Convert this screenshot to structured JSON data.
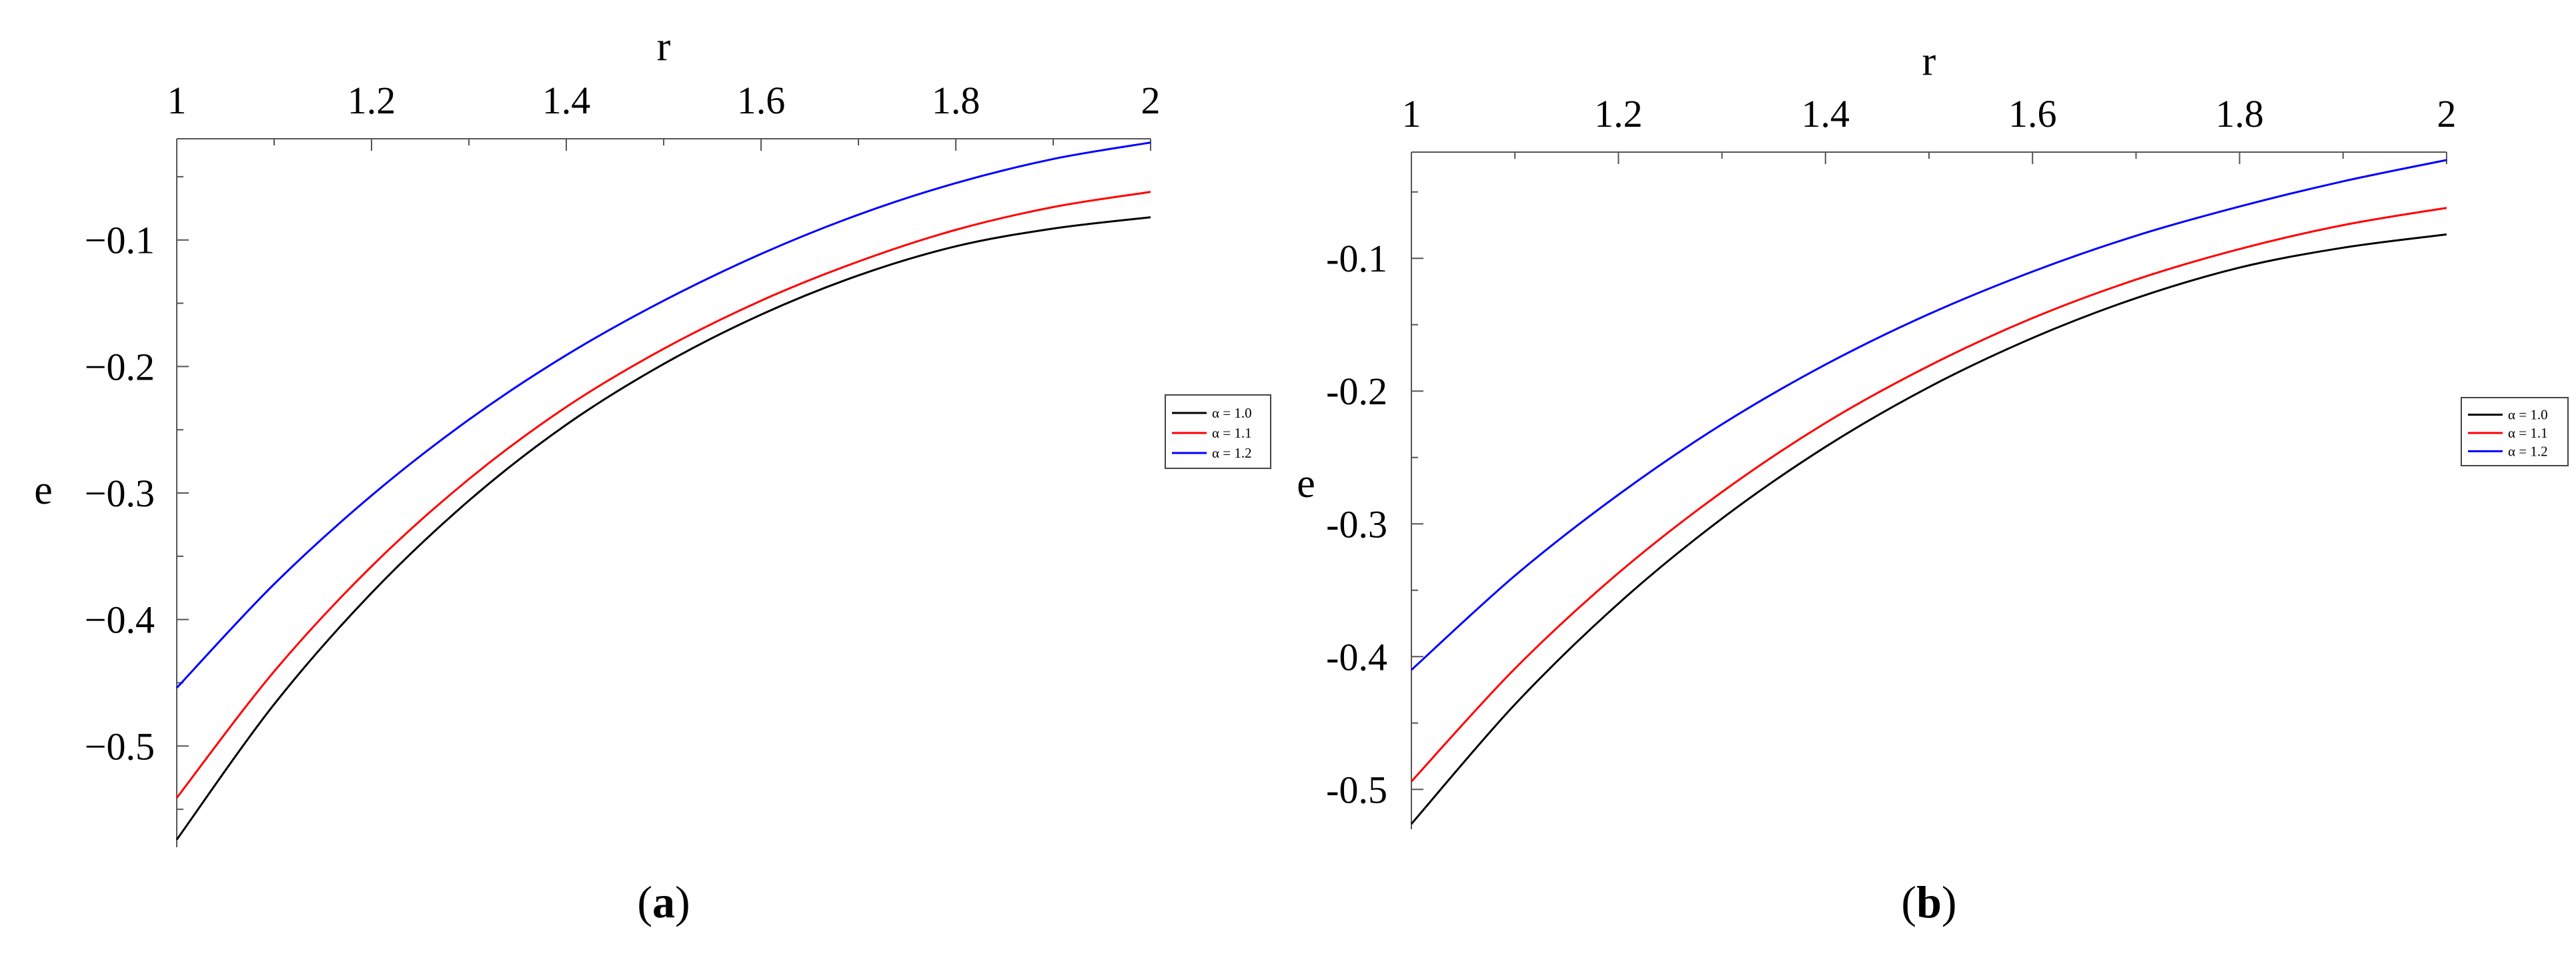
{
  "chart_data": [
    {
      "type": "line",
      "panel": "a",
      "caption": "(a)",
      "xlabel": "r",
      "ylabel": "e",
      "xlim": [
        1,
        2
      ],
      "ylim": [
        -0.58,
        -0.02
      ],
      "x_ticks": [
        "1",
        "1.2",
        "1.4",
        "1.6",
        "1.8",
        "2"
      ],
      "y_ticks": [
        "−0.1",
        "−0.2",
        "−0.3",
        "−0.4",
        "−0.5"
      ],
      "x_axis_position": "top",
      "legend_position": "right",
      "grid": false,
      "x": [
        1.0,
        1.1,
        1.2,
        1.3,
        1.4,
        1.5,
        1.6,
        1.7,
        1.8,
        1.9,
        2.0
      ],
      "series": [
        {
          "name": "α = 1.0",
          "color": "#000000",
          "values": [
            -0.574,
            -0.467,
            -0.379,
            -0.306,
            -0.246,
            -0.198,
            -0.159,
            -0.128,
            -0.105,
            -0.091,
            -0.082
          ]
        },
        {
          "name": "α = 1.1",
          "color": "#ff0000",
          "values": [
            -0.541,
            -0.441,
            -0.358,
            -0.289,
            -0.232,
            -0.186,
            -0.148,
            -0.117,
            -0.092,
            -0.074,
            -0.062
          ]
        },
        {
          "name": "α = 1.2",
          "color": "#0000ff",
          "values": [
            -0.454,
            -0.372,
            -0.302,
            -0.242,
            -0.191,
            -0.148,
            -0.111,
            -0.08,
            -0.055,
            -0.036,
            -0.023
          ]
        }
      ]
    },
    {
      "type": "line",
      "panel": "b",
      "caption": "(b)",
      "xlabel": "r",
      "ylabel": "e",
      "xlim": [
        1,
        2
      ],
      "ylim": [
        -0.53,
        -0.02
      ],
      "x_ticks": [
        "1",
        "1.2",
        "1.4",
        "1.6",
        "1.8",
        "2"
      ],
      "y_ticks": [
        "-0.1",
        "-0.2",
        "-0.3",
        "-0.4",
        "-0.5"
      ],
      "x_axis_position": "top",
      "legend_position": "right",
      "grid": false,
      "x": [
        1.0,
        1.1,
        1.2,
        1.3,
        1.4,
        1.5,
        1.6,
        1.7,
        1.8,
        1.9,
        2.0
      ],
      "series": [
        {
          "name": "α = 1.0",
          "color": "#000000",
          "values": [
            -0.526,
            -0.436,
            -0.36,
            -0.296,
            -0.242,
            -0.197,
            -0.16,
            -0.13,
            -0.107,
            -0.092,
            -0.082
          ]
        },
        {
          "name": "α = 1.1",
          "color": "#ff0000",
          "values": [
            -0.494,
            -0.409,
            -0.337,
            -0.276,
            -0.224,
            -0.181,
            -0.145,
            -0.116,
            -0.093,
            -0.075,
            -0.062
          ]
        },
        {
          "name": "α = 1.2",
          "color": "#0000ff",
          "values": [
            -0.41,
            -0.339,
            -0.278,
            -0.225,
            -0.18,
            -0.142,
            -0.11,
            -0.083,
            -0.061,
            -0.042,
            -0.026
          ]
        }
      ]
    }
  ]
}
